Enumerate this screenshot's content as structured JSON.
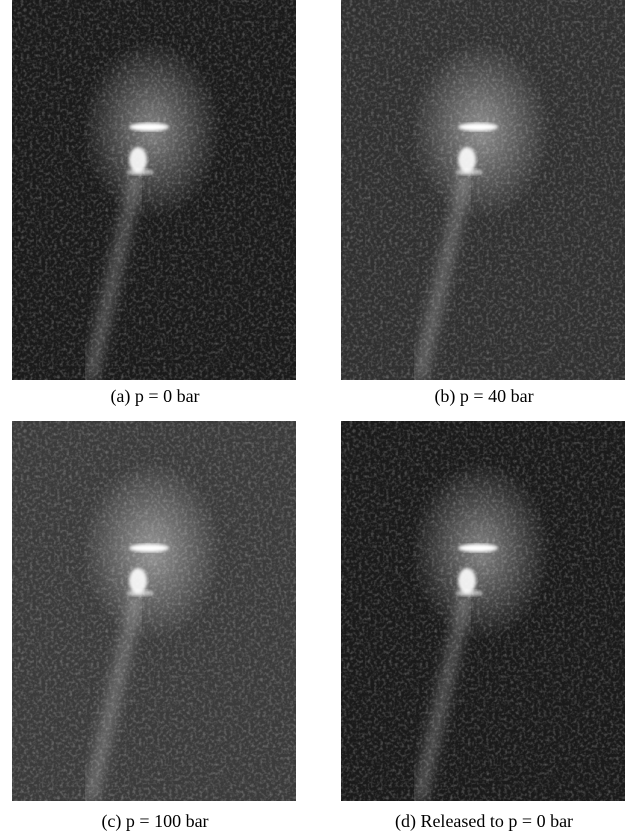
{
  "panels": [
    {
      "caption": "(a) p = 0 bar"
    },
    {
      "caption": "(b) p = 40 bar"
    },
    {
      "caption": "(c) p = 100 bar"
    },
    {
      "caption": "(d) Released to p = 0 bar"
    }
  ]
}
